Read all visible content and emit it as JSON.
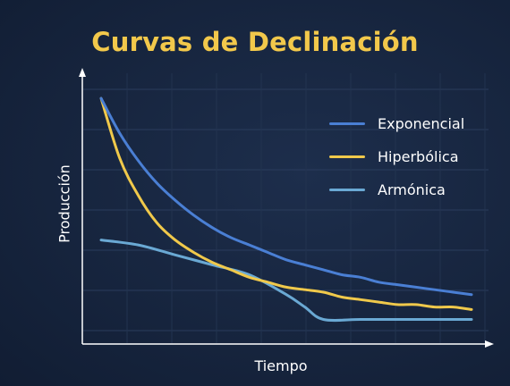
{
  "chart_data": {
    "type": "line",
    "title": "Curvas de Declinación",
    "xlabel": "Tiempo",
    "ylabel": "Producción",
    "grid": true,
    "legend_position": "top-right",
    "xlim": [
      0,
      100
    ],
    "ylim": [
      0,
      100
    ],
    "series": [
      {
        "name": "Exponencial",
        "color": "#4a7fd4",
        "x": [
          0,
          5,
          10,
          15,
          20,
          25,
          30,
          35,
          40,
          45,
          50,
          55,
          60,
          65,
          70,
          75,
          80,
          85,
          90,
          95,
          100
        ],
        "y": [
          96,
          82,
          71,
          62,
          55,
          49,
          44,
          40,
          37,
          34,
          31,
          29,
          27,
          25,
          24,
          22,
          21,
          20,
          19,
          18,
          17
        ]
      },
      {
        "name": "Hiperbólica",
        "color": "#f0c94b",
        "x": [
          0,
          5,
          10,
          15,
          20,
          25,
          30,
          35,
          40,
          45,
          50,
          55,
          60,
          65,
          70,
          75,
          80,
          85,
          90,
          95,
          100
        ],
        "y": [
          96,
          72,
          57,
          46,
          39,
          34,
          30,
          27,
          24,
          22,
          20,
          19,
          18,
          16,
          15,
          14,
          13,
          13,
          12,
          12,
          11
        ]
      },
      {
        "name": "Armónica",
        "color": "#6aa9d4",
        "x": [
          0,
          10,
          20,
          30,
          40,
          50,
          55,
          60,
          70,
          80,
          90,
          100
        ],
        "y": [
          39,
          37,
          33,
          29,
          25,
          17,
          12,
          7,
          7,
          7,
          7,
          7
        ]
      }
    ]
  }
}
